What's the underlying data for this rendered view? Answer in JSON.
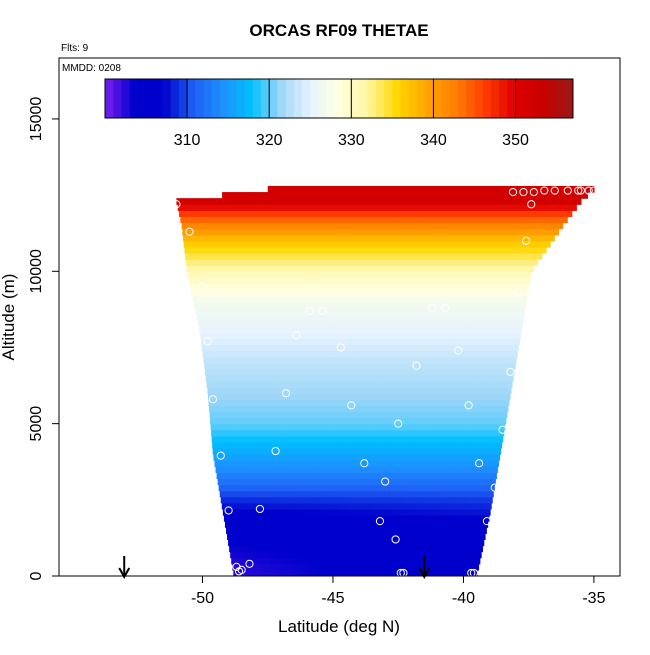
{
  "chart_data": {
    "type": "heatmap",
    "title": "ORCAS RF09 THETAE",
    "notes": [
      "Flts: 9",
      "MMDD: 0208"
    ],
    "xlabel": "Latitude (deg N)",
    "ylabel": "Altitude (m)",
    "xlim": [
      -55.5,
      -34.0
    ],
    "ylim": [
      0,
      17000
    ],
    "x_ticks": [
      -50,
      -45,
      -40,
      -35
    ],
    "x_tick_labels": [
      "-50",
      "-45",
      "-40",
      "-35"
    ],
    "y_ticks": [
      0,
      5000,
      10000,
      15000
    ],
    "y_tick_labels": [
      "0",
      "5000",
      "10000",
      "15000"
    ],
    "colorbar": {
      "range": [
        300,
        357
      ],
      "ticks": [
        310,
        320,
        330,
        340,
        350
      ],
      "tick_labels": [
        "310",
        "320",
        "330",
        "340",
        "350"
      ],
      "colors": [
        "#7a1ff0",
        "#0000cc",
        "#0000cc",
        "#1e5ff5",
        "#1e8fff",
        "#00bfff",
        "#9fd6f8",
        "#e6f3ff",
        "#ffffe0",
        "#fff5a0",
        "#ffd700",
        "#ffa500",
        "#ff7f00",
        "#ff3b00",
        "#e00000",
        "#c80000",
        "#9a1a1a"
      ]
    },
    "field": {
      "description_values": [
        {
          "altitude": 300,
          "thetae": 304
        },
        {
          "altitude": 1500,
          "thetae": 305
        },
        {
          "altitude": 2500,
          "thetae": 309
        },
        {
          "altitude": 3500,
          "thetae": 314
        },
        {
          "altitude": 5000,
          "thetae": 320
        },
        {
          "altitude": 7000,
          "thetae": 323
        },
        {
          "altitude": 9000,
          "thetae": 327
        },
        {
          "altitude": 10000,
          "thetae": 331
        },
        {
          "altitude": 11000,
          "thetae": 337
        },
        {
          "altitude": 11800,
          "thetae": 345
        },
        {
          "altitude": 12300,
          "thetae": 352
        }
      ],
      "coverage": [
        {
          "altitude": 0,
          "lat_min": -48.8,
          "lat_max": -39.5
        },
        {
          "altitude": 2000,
          "lat_min": -49.2,
          "lat_max": -39.0
        },
        {
          "altitude": 4000,
          "lat_min": -49.6,
          "lat_max": -38.6
        },
        {
          "altitude": 6000,
          "lat_min": -49.8,
          "lat_max": -38.2
        },
        {
          "altitude": 8000,
          "lat_min": -50.1,
          "lat_max": -37.8
        },
        {
          "altitude": 10000,
          "lat_min": -50.6,
          "lat_max": -37.4
        },
        {
          "altitude": 11500,
          "lat_min": -50.8,
          "lat_max": -36.2
        },
        {
          "altitude": 12300,
          "lat_min": -51.0,
          "lat_max": -35.5
        },
        {
          "altitude": 12700,
          "lat_min": -47.5,
          "lat_max": -35.0
        }
      ]
    },
    "flight_points": [
      {
        "x": -51.0,
        "y": 12200
      },
      {
        "x": -50.5,
        "y": 11300
      },
      {
        "x": -50.0,
        "y": 9500
      },
      {
        "x": -49.8,
        "y": 7700
      },
      {
        "x": -49.6,
        "y": 5800
      },
      {
        "x": -49.3,
        "y": 3950
      },
      {
        "x": -49.0,
        "y": 2150
      },
      {
        "x": -48.7,
        "y": 300
      },
      {
        "x": -48.2,
        "y": 400
      },
      {
        "x": -48.5,
        "y": 200
      },
      {
        "x": -48.6,
        "y": 150
      },
      {
        "x": -47.8,
        "y": 2200
      },
      {
        "x": -47.2,
        "y": 4100
      },
      {
        "x": -46.8,
        "y": 6000
      },
      {
        "x": -46.4,
        "y": 7900
      },
      {
        "x": -45.9,
        "y": 8700
      },
      {
        "x": -45.4,
        "y": 8700
      },
      {
        "x": -44.7,
        "y": 7500
      },
      {
        "x": -44.3,
        "y": 5600
      },
      {
        "x": -43.8,
        "y": 3700
      },
      {
        "x": -43.2,
        "y": 1800
      },
      {
        "x": -42.6,
        "y": 1200
      },
      {
        "x": -42.3,
        "y": 100
      },
      {
        "x": -42.4,
        "y": 100
      },
      {
        "x": -43.0,
        "y": 3100
      },
      {
        "x": -42.5,
        "y": 5000
      },
      {
        "x": -41.8,
        "y": 6900
      },
      {
        "x": -41.2,
        "y": 8800
      },
      {
        "x": -40.7,
        "y": 8800
      },
      {
        "x": -40.2,
        "y": 7400
      },
      {
        "x": -39.8,
        "y": 5600
      },
      {
        "x": -39.4,
        "y": 3700
      },
      {
        "x": -39.1,
        "y": 1800
      },
      {
        "x": -38.8,
        "y": 1000
      },
      {
        "x": -39.6,
        "y": 100
      },
      {
        "x": -39.7,
        "y": 100
      },
      {
        "x": -38.8,
        "y": 2900
      },
      {
        "x": -38.5,
        "y": 4800
      },
      {
        "x": -38.2,
        "y": 6700
      },
      {
        "x": -37.9,
        "y": 9300
      },
      {
        "x": -37.6,
        "y": 11000
      },
      {
        "x": -37.4,
        "y": 12200
      },
      {
        "x": -38.1,
        "y": 12600
      },
      {
        "x": -37.7,
        "y": 12600
      },
      {
        "x": -37.3,
        "y": 12600
      },
      {
        "x": -36.9,
        "y": 12650
      },
      {
        "x": -36.5,
        "y": 12650
      },
      {
        "x": -36.0,
        "y": 12650
      },
      {
        "x": -35.6,
        "y": 12650
      },
      {
        "x": -35.2,
        "y": 12650
      },
      {
        "x": -35.5,
        "y": 12650
      },
      {
        "x": -35.0,
        "y": 12650
      }
    ],
    "arrows": [
      {
        "x": -53.0
      },
      {
        "x": -41.5
      }
    ]
  }
}
